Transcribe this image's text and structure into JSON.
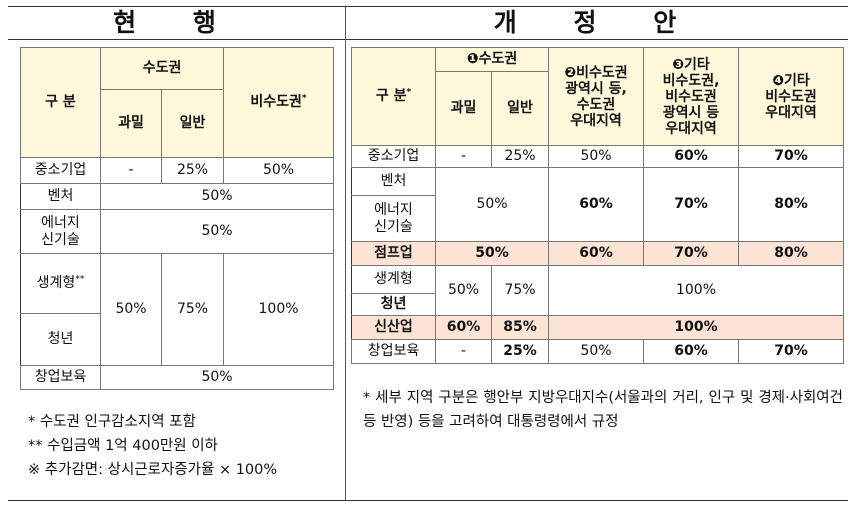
{
  "current": {
    "heading": "현 행",
    "header": {
      "category": "구 분",
      "capital": "수도권",
      "overcrowded": "과밀",
      "general": "일반",
      "non_capital": "비수도권",
      "non_capital_mark": "*"
    },
    "rows": {
      "sme": {
        "label": "중소기업",
        "overcrowded": "-",
        "general": "25%",
        "non_capital": "50%"
      },
      "venture": {
        "label": "벤처",
        "value": "50%"
      },
      "energy": {
        "label_line1": "에너지",
        "label_line2": "신기술",
        "value": "50%"
      },
      "livelihood": {
        "label": "생계형",
        "mark": "**"
      },
      "youth": {
        "label": "청년"
      },
      "livelihood_youth_values": {
        "overcrowded": "50%",
        "general": "75%",
        "non_capital": "100%"
      },
      "childcare": {
        "label": "창업보육",
        "value": "50%"
      }
    },
    "notes": [
      "*  수도권 인구감소지역 포함",
      "** 수입금액 1억 400만원 이하",
      "※ 추가감면: 상시근로자증가율 × 100%"
    ]
  },
  "revised": {
    "heading": "개 정 안",
    "header": {
      "category": "구 분",
      "category_mark": "*",
      "col1": "❶수도권",
      "overcrowded": "과밀",
      "general": "일반",
      "col2_lines": [
        "❷비수도권",
        "광역시 등,",
        "수도권",
        "우대지역"
      ],
      "col3_lines": [
        "❸기타",
        "비수도권,",
        "비수도권",
        "광역시 등",
        "우대지역"
      ],
      "col4_lines": [
        "❹기타",
        "비수도권",
        "우대지역"
      ]
    },
    "rows": {
      "sme": {
        "label": "중소기업",
        "overcrowded": "-",
        "general": "25%",
        "c2": "50%",
        "c3": "60%",
        "c4": "70%"
      },
      "venture": {
        "label": "벤처"
      },
      "energy": {
        "label_line1": "에너지",
        "label_line2": "신기술"
      },
      "venture_energy_values": {
        "capital": "50%",
        "c2": "60%",
        "c3": "70%",
        "c4": "80%"
      },
      "jump": {
        "label": "점프업",
        "capital": "50%",
        "c2": "60%",
        "c3": "70%",
        "c4": "80%"
      },
      "livelihood": {
        "label": "생계형"
      },
      "youth": {
        "label": "청년"
      },
      "livelihood_youth_values": {
        "overcrowded": "50%",
        "general": "75%",
        "rest": "100%"
      },
      "newindustry": {
        "label": "신산업",
        "overcrowded": "60%",
        "general": "85%",
        "rest": "100%"
      },
      "childcare": {
        "label": "창업보육",
        "overcrowded": "-",
        "general": "25%",
        "c2": "50%",
        "c3": "60%",
        "c4": "70%"
      }
    },
    "note": "* 세부 지역 구분은 행안부 지방우대지수(서울과의 거리, 인구 및 경제·사회여건 등 반영) 등을 고려하여 대통령령에서 규정"
  },
  "colors": {
    "header_bg": "#fff8da",
    "highlight_bg": "#fbe4d6"
  }
}
